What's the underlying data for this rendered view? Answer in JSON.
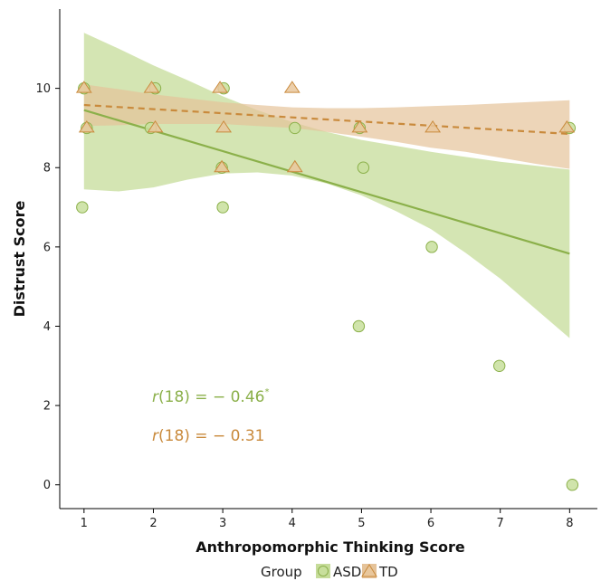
{
  "chart_data": {
    "type": "scatter",
    "xlabel": "Anthropomorphic Thinking Score",
    "ylabel": "Distrust Score",
    "xlim": [
      0.65,
      8.4
    ],
    "ylim": [
      -0.6,
      12.0
    ],
    "x_ticks": [
      "1",
      "2",
      "3",
      "4",
      "5",
      "6",
      "7",
      "8"
    ],
    "y_ticks": [
      "0",
      "2",
      "4",
      "6",
      "8",
      "10"
    ],
    "grid": false,
    "legend": {
      "title": "Group",
      "position": "bottom",
      "entries": [
        "ASD",
        "TD"
      ]
    },
    "series": [
      {
        "name": "ASD",
        "marker": "circle",
        "color": "#8bb04a",
        "fill": "#c6dc9a",
        "points": [
          {
            "x": 1,
            "y": 10
          },
          {
            "x": 1,
            "y": 9
          },
          {
            "x": 1,
            "y": 7
          },
          {
            "x": 2,
            "y": 10
          },
          {
            "x": 2,
            "y": 9
          },
          {
            "x": 3,
            "y": 10
          },
          {
            "x": 3,
            "y": 8
          },
          {
            "x": 3,
            "y": 7
          },
          {
            "x": 4,
            "y": 9
          },
          {
            "x": 5,
            "y": 9
          },
          {
            "x": 5,
            "y": 8
          },
          {
            "x": 5,
            "y": 4
          },
          {
            "x": 6,
            "y": 6
          },
          {
            "x": 7,
            "y": 3
          },
          {
            "x": 8,
            "y": 9
          },
          {
            "x": 8,
            "y": 0
          }
        ],
        "fit": {
          "x": [
            1,
            8
          ],
          "y": [
            9.45,
            5.83
          ],
          "style": "solid"
        },
        "band": {
          "x": [
            1,
            1.5,
            2,
            2.5,
            3,
            3.5,
            4,
            4.5,
            5,
            5.5,
            6,
            6.5,
            7,
            7.5,
            8
          ],
          "upper": [
            11.4,
            11.0,
            10.58,
            10.2,
            9.8,
            9.45,
            9.15,
            8.9,
            8.7,
            8.55,
            8.4,
            8.27,
            8.15,
            8.05,
            7.95
          ],
          "lower": [
            7.45,
            7.4,
            7.5,
            7.7,
            7.85,
            7.88,
            7.8,
            7.6,
            7.3,
            6.9,
            6.45,
            5.85,
            5.2,
            4.45,
            3.7
          ]
        }
      },
      {
        "name": "TD",
        "marker": "triangle",
        "color": "#c98a3c",
        "fill": "#e5c39a",
        "points": [
          {
            "x": 1,
            "y": 10
          },
          {
            "x": 1,
            "y": 9
          },
          {
            "x": 2,
            "y": 10
          },
          {
            "x": 2,
            "y": 9
          },
          {
            "x": 3,
            "y": 10
          },
          {
            "x": 3,
            "y": 9
          },
          {
            "x": 3,
            "y": 8
          },
          {
            "x": 4,
            "y": 10
          },
          {
            "x": 4,
            "y": 8
          },
          {
            "x": 5,
            "y": 9
          },
          {
            "x": 6,
            "y": 9
          },
          {
            "x": 8,
            "y": 9
          }
        ],
        "fit": {
          "x": [
            1,
            8
          ],
          "y": [
            9.58,
            8.85
          ],
          "style": "dashed"
        },
        "band": {
          "x": [
            1,
            1.5,
            2,
            2.5,
            3,
            3.5,
            4,
            4.5,
            5,
            5.5,
            6,
            6.5,
            7,
            7.5,
            8
          ],
          "upper": [
            10.1,
            9.98,
            9.85,
            9.75,
            9.65,
            9.58,
            9.52,
            9.5,
            9.5,
            9.52,
            9.55,
            9.58,
            9.62,
            9.66,
            9.7
          ],
          "lower": [
            9.05,
            9.07,
            9.1,
            9.1,
            9.1,
            9.05,
            9.0,
            8.9,
            8.78,
            8.65,
            8.5,
            8.4,
            8.25,
            8.1,
            7.97
          ]
        }
      }
    ],
    "annotations": [
      {
        "series": "ASD",
        "r_symbol": "r",
        "df": "(18)",
        "text": " = − 0.46",
        "superscript": "*"
      },
      {
        "series": "TD",
        "r_symbol": "r",
        "df": "(18)",
        "text": " = − 0.31",
        "superscript": ""
      }
    ]
  }
}
